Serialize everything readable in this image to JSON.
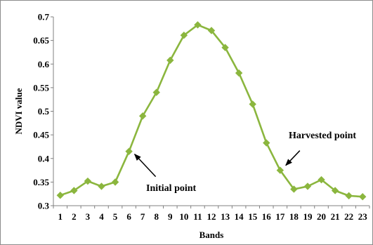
{
  "chart_data": {
    "type": "line",
    "title": "",
    "xlabel": "Bands",
    "ylabel": "NDVI value",
    "x": [
      1,
      2,
      3,
      4,
      5,
      6,
      7,
      8,
      9,
      10,
      11,
      12,
      13,
      14,
      15,
      16,
      17,
      18,
      19,
      20,
      21,
      22,
      23
    ],
    "series": [
      {
        "values": [
          0.322,
          0.332,
          0.352,
          0.341,
          0.35,
          0.415,
          0.49,
          0.54,
          0.608,
          0.661,
          0.683,
          0.671,
          0.635,
          0.581,
          0.515,
          0.433,
          0.375,
          0.335,
          0.341,
          0.355,
          0.332,
          0.321,
          0.319
        ],
        "color": "#8bb63e",
        "marker": "diamond"
      }
    ],
    "ylim": [
      0.3,
      0.7
    ],
    "yticks": [
      "0.3",
      "0.35",
      "0.4",
      "0.45",
      "0.5",
      "0.55",
      "0.6",
      "0.65",
      "0.7"
    ],
    "xticks": [
      "1",
      "2",
      "3",
      "4",
      "5",
      "6",
      "7",
      "8",
      "9",
      "10",
      "11",
      "12",
      "13",
      "14",
      "15",
      "16",
      "17",
      "18",
      "19",
      "20",
      "21",
      "22",
      "23"
    ],
    "grid": false,
    "legend": "none",
    "annotations": [
      {
        "text": "Initial point",
        "x": 6,
        "y": 0.415
      },
      {
        "text": "Harvested point",
        "x": 17,
        "y": 0.375
      }
    ]
  }
}
